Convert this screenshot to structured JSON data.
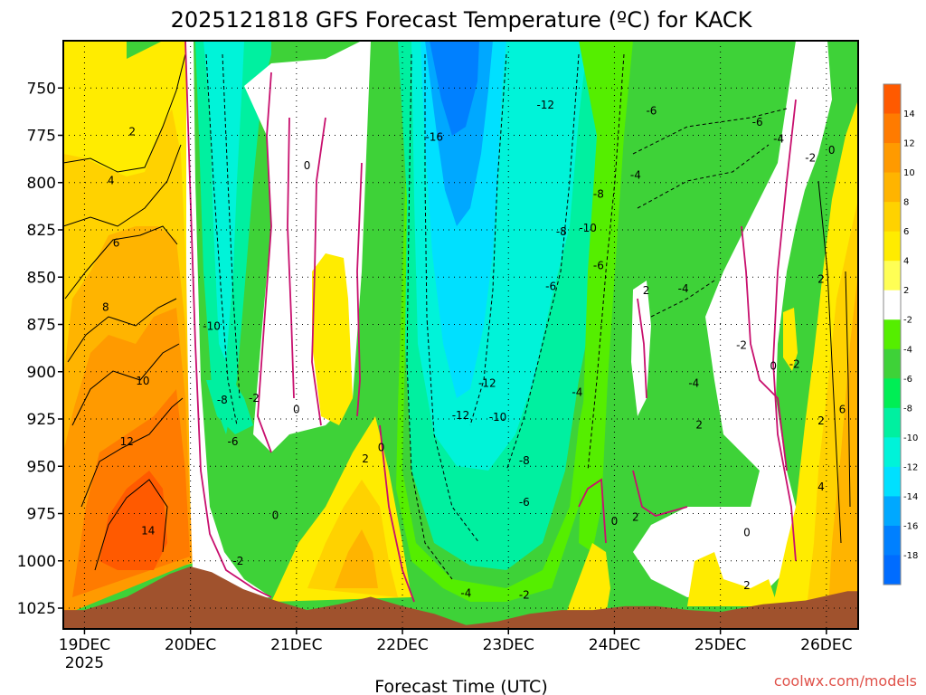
{
  "chart_data": {
    "type": "heatmap",
    "title": "2025121818 GFS Forecast Temperature (ºC) for KACK",
    "xlabel": "Forecast Time (UTC)",
    "ylabel": "",
    "x_ticks": [
      "19DEC",
      "20DEC",
      "21DEC",
      "22DEC",
      "23DEC",
      "24DEC",
      "25DEC",
      "26DEC"
    ],
    "x_tick_sub": "2025",
    "x_range_days": [
      -0.2,
      7.3
    ],
    "y_ticks": [
      750,
      775,
      800,
      825,
      850,
      875,
      900,
      925,
      950,
      975,
      1000,
      1025
    ],
    "y_range": [
      725,
      1036
    ],
    "colorbar_labels": [
      14,
      12,
      10,
      8,
      6,
      4,
      2,
      -2,
      -4,
      -6,
      -8,
      -10,
      -12,
      -14,
      -16,
      -18
    ],
    "colorbar_colors": [
      "#ff5a00",
      "#ff7b00",
      "#ff9a00",
      "#ffb400",
      "#ffd200",
      "#ffec00",
      "#ffff55",
      "#ffffff",
      "#55ee00",
      "#3ed238",
      "#00ee55",
      "#00f0a0",
      "#00f3d9",
      "#00e0ff",
      "#00a8ff",
      "#0080ff",
      "#006cff"
    ],
    "terrain_color": "#a0522d",
    "series": [
      {
        "name": "surface pressure",
        "x_days": [
          0,
          0.4,
          0.8,
          1.0,
          1.2,
          1.5,
          1.8,
          2.1,
          2.4,
          2.7,
          3.0,
          3.3,
          3.6,
          3.9,
          4.2,
          4.5,
          4.8,
          5.1,
          5.4,
          5.7,
          6.0,
          6.4,
          6.8,
          7.2
        ],
        "values": [
          1026,
          1019,
          1007,
          1003,
          1006,
          1015,
          1021,
          1026,
          1023,
          1019,
          1024,
          1028,
          1034,
          1032,
          1028,
          1026,
          1026,
          1024,
          1024,
          1026,
          1027,
          1023,
          1021,
          1016
        ]
      }
    ],
    "contour_labels": [
      {
        "text": "2",
        "day": 0.45,
        "p": 773
      },
      {
        "text": "0",
        "day": 2.1,
        "p": 791
      },
      {
        "text": "4",
        "day": 0.25,
        "p": 799
      },
      {
        "text": "6",
        "day": 0.3,
        "p": 832
      },
      {
        "text": "8",
        "day": 0.2,
        "p": 866
      },
      {
        "text": "10",
        "day": 0.55,
        "p": 905
      },
      {
        "text": "12",
        "day": 0.4,
        "p": 937
      },
      {
        "text": "14",
        "day": 0.6,
        "p": 984
      },
      {
        "text": "-10",
        "day": 1.2,
        "p": 876
      },
      {
        "text": "-8",
        "day": 1.3,
        "p": 915
      },
      {
        "text": "-2",
        "day": 1.6,
        "p": 914
      },
      {
        "text": "0",
        "day": 2.0,
        "p": 920
      },
      {
        "text": "-6",
        "day": 1.4,
        "p": 937
      },
      {
        "text": "2",
        "day": 2.65,
        "p": 946
      },
      {
        "text": "0",
        "day": 2.8,
        "p": 940
      },
      {
        "text": "0",
        "day": 1.8,
        "p": 976
      },
      {
        "text": "-2",
        "day": 1.45,
        "p": 1000
      },
      {
        "text": "-16",
        "day": 3.3,
        "p": 776
      },
      {
        "text": "-12",
        "day": 4.35,
        "p": 759
      },
      {
        "text": "-8",
        "day": 4.5,
        "p": 826
      },
      {
        "text": "-10",
        "day": 4.75,
        "p": 824
      },
      {
        "text": "-8",
        "day": 4.85,
        "p": 806
      },
      {
        "text": "-6",
        "day": 4.85,
        "p": 844
      },
      {
        "text": "-6",
        "day": 4.4,
        "p": 855
      },
      {
        "text": "-4",
        "day": 5.2,
        "p": 796
      },
      {
        "text": "-6",
        "day": 5.35,
        "p": 762
      },
      {
        "text": "-6",
        "day": 6.35,
        "p": 768
      },
      {
        "text": "-4",
        "day": 6.55,
        "p": 777
      },
      {
        "text": "-2",
        "day": 6.85,
        "p": 787
      },
      {
        "text": "0",
        "day": 7.05,
        "p": 783
      },
      {
        "text": "2",
        "day": 5.3,
        "p": 857
      },
      {
        "text": "-4",
        "day": 5.65,
        "p": 856
      },
      {
        "text": "-12",
        "day": 3.8,
        "p": 906
      },
      {
        "text": "-12",
        "day": 3.55,
        "p": 923
      },
      {
        "text": "-10",
        "day": 3.9,
        "p": 924
      },
      {
        "text": "-4",
        "day": 4.65,
        "p": 911
      },
      {
        "text": "-4",
        "day": 5.75,
        "p": 906
      },
      {
        "text": "-2",
        "day": 6.2,
        "p": 886
      },
      {
        "text": "-2",
        "day": 6.7,
        "p": 896
      },
      {
        "text": "0",
        "day": 6.5,
        "p": 897
      },
      {
        "text": "2",
        "day": 6.95,
        "p": 851
      },
      {
        "text": "2",
        "day": 6.95,
        "p": 926
      },
      {
        "text": "6",
        "day": 7.15,
        "p": 920
      },
      {
        "text": "4",
        "day": 6.95,
        "p": 961
      },
      {
        "text": "2",
        "day": 5.8,
        "p": 928
      },
      {
        "text": "-8",
        "day": 4.15,
        "p": 947
      },
      {
        "text": "-6",
        "day": 4.15,
        "p": 969
      },
      {
        "text": "0",
        "day": 5.0,
        "p": 979
      },
      {
        "text": "2",
        "day": 5.2,
        "p": 977
      },
      {
        "text": "0",
        "day": 6.25,
        "p": 985
      },
      {
        "text": "2",
        "day": 6.25,
        "p": 1013
      },
      {
        "text": "-4",
        "day": 3.6,
        "p": 1017
      },
      {
        "text": "-2",
        "day": 4.15,
        "p": 1018
      }
    ]
  },
  "credit": "coolwx.com/models"
}
